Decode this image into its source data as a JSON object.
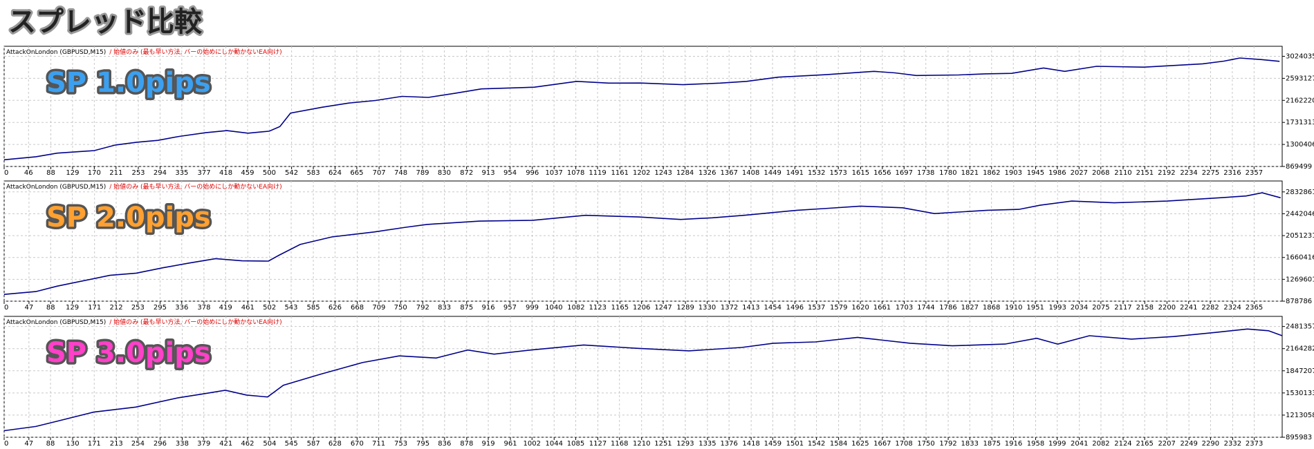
{
  "title": "スプレッド比較",
  "chart_data": [
    {
      "type": "line",
      "header": "AttackOnLondon (GBPUSD,M15)",
      "mode_note": "/ 始値のみ (最も早い方法, バーの始めにしか動かないEA向け)",
      "label": "SP 1.0pips",
      "label_color": "#3ca0f0",
      "grid": true,
      "x": [
        0,
        60,
        100,
        170,
        210,
        250,
        290,
        330,
        380,
        420,
        460,
        500,
        520,
        540,
        600,
        650,
        700,
        750,
        800,
        850,
        900,
        1000,
        1080,
        1140,
        1200,
        1280,
        1350,
        1400,
        1460,
        1550,
        1640,
        1680,
        1720,
        1800,
        1850,
        1900,
        1960,
        2000,
        2060,
        2150,
        2260,
        2300,
        2330,
        2370,
        2405
      ],
      "series": [
        {
          "color": "#00008b",
          "values": [
            1000000,
            1060000,
            1130000,
            1180000,
            1290000,
            1343000,
            1380000,
            1457000,
            1530000,
            1570000,
            1520000,
            1560000,
            1650000,
            1914000,
            2028000,
            2110000,
            2159000,
            2240000,
            2220000,
            2300000,
            2387000,
            2420000,
            2534000,
            2500000,
            2502000,
            2469000,
            2500000,
            2534000,
            2616000,
            2665000,
            2730000,
            2700000,
            2649000,
            2660000,
            2681000,
            2690000,
            2796000,
            2730000,
            2828000,
            2812000,
            2877000,
            2930000,
            2991000,
            2960000,
            2926000
          ]
        }
      ],
      "xlim": [
        0,
        2410
      ],
      "ylim": [
        869499,
        3220000
      ],
      "xticks": [
        0,
        46,
        88,
        129,
        170,
        211,
        253,
        294,
        335,
        377,
        418,
        459,
        500,
        542,
        583,
        624,
        665,
        707,
        748,
        789,
        830,
        872,
        913,
        954,
        996,
        1037,
        1078,
        1119,
        1161,
        1202,
        1243,
        1284,
        1326,
        1367,
        1408,
        1449,
        1491,
        1532,
        1573,
        1615,
        1656,
        1697,
        1738,
        1780,
        1821,
        1862,
        1903,
        1945,
        1986,
        2027,
        2068,
        2110,
        2151,
        2192,
        2234,
        2275,
        2316,
        2357
      ],
      "yticks": [
        869499,
        1300406,
        1731313,
        2162220,
        2593127,
        3024035
      ]
    },
    {
      "type": "line",
      "header": "AttackOnLondon (GBPUSD,M15)",
      "mode_note": "/ 始値のみ (最も早い方法, バーの始めにしか動かないEA向け)",
      "label": "SP 2.0pips",
      "label_color": "#ffa030",
      "grid": true,
      "x": [
        0,
        60,
        100,
        200,
        250,
        300,
        350,
        400,
        450,
        500,
        520,
        560,
        620,
        700,
        760,
        800,
        900,
        1000,
        1100,
        1200,
        1280,
        1340,
        1400,
        1500,
        1560,
        1620,
        1700,
        1760,
        1860,
        1920,
        1960,
        2020,
        2100,
        2200,
        2300,
        2350,
        2380,
        2415
      ],
      "series": [
        {
          "color": "#00008b",
          "values": [
            1000000,
            1050000,
            1147000,
            1341000,
            1380000,
            1475000,
            1560000,
            1640000,
            1600000,
            1595000,
            1700000,
            1893000,
            2027000,
            2117000,
            2200000,
            2251000,
            2310000,
            2325000,
            2414000,
            2385000,
            2340000,
            2370000,
            2414000,
            2504000,
            2540000,
            2579000,
            2549000,
            2445000,
            2504000,
            2520000,
            2594000,
            2668000,
            2638000,
            2668000,
            2728000,
            2760000,
            2817000,
            2728000
          ]
        }
      ],
      "xlim": [
        0,
        2418
      ],
      "ylim": [
        878786,
        3028000
      ],
      "xticks": [
        0,
        47,
        88,
        129,
        171,
        212,
        253,
        295,
        336,
        378,
        419,
        461,
        502,
        543,
        585,
        626,
        668,
        709,
        750,
        792,
        833,
        875,
        916,
        957,
        999,
        1040,
        1082,
        1123,
        1165,
        1206,
        1247,
        1289,
        1330,
        1372,
        1413,
        1454,
        1496,
        1537,
        1579,
        1620,
        1661,
        1703,
        1744,
        1786,
        1827,
        1868,
        1910,
        1951,
        1993,
        2034,
        2075,
        2117,
        2158,
        2200,
        2241,
        2282,
        2324,
        2365
      ],
      "yticks": [
        878786,
        1269601,
        1660416,
        2051231,
        2442046,
        2832861
      ]
    },
    {
      "type": "line",
      "header": "AttackOnLondon (GBPUSD,M15)",
      "mode_note": "/ 始値のみ (最も早い方法, バーの始めにしか動かないEA向け)",
      "label": "SP 3.0pips",
      "label_color": "#ff40c8",
      "grid": true,
      "x": [
        0,
        60,
        100,
        170,
        250,
        330,
        380,
        420,
        460,
        500,
        530,
        600,
        680,
        750,
        820,
        880,
        930,
        1000,
        1100,
        1200,
        1300,
        1400,
        1460,
        1540,
        1620,
        1720,
        1800,
        1900,
        1960,
        2000,
        2060,
        2140,
        2220,
        2300,
        2360,
        2400,
        2426
      ],
      "series": [
        {
          "color": "#00008b",
          "values": [
            990000,
            1050000,
            1124000,
            1256000,
            1328000,
            1460000,
            1520000,
            1568000,
            1500000,
            1472000,
            1640000,
            1797000,
            1965000,
            2061000,
            2030000,
            2145000,
            2085000,
            2145000,
            2217000,
            2169000,
            2133000,
            2181000,
            2241000,
            2260000,
            2325000,
            2241000,
            2205000,
            2230000,
            2313000,
            2229000,
            2349000,
            2301000,
            2337000,
            2397000,
            2445000,
            2420000,
            2349000
          ]
        }
      ],
      "xlim": [
        0,
        2426
      ],
      "ylim": [
        895983,
        2626000
      ],
      "xticks": [
        0,
        47,
        88,
        130,
        171,
        213,
        254,
        296,
        338,
        379,
        421,
        462,
        504,
        545,
        587,
        628,
        670,
        711,
        753,
        795,
        836,
        878,
        919,
        961,
        1002,
        1044,
        1085,
        1127,
        1168,
        1210,
        1251,
        1293,
        1335,
        1376,
        1418,
        1459,
        1501,
        1542,
        1584,
        1625,
        1667,
        1708,
        1750,
        1792,
        1833,
        1875,
        1916,
        1958,
        1999,
        2041,
        2082,
        2124,
        2165,
        2207,
        2249,
        2290,
        2332,
        2373
      ],
      "yticks": [
        895983,
        1213058,
        1530133,
        1847207,
        2164282,
        2481357
      ]
    }
  ]
}
